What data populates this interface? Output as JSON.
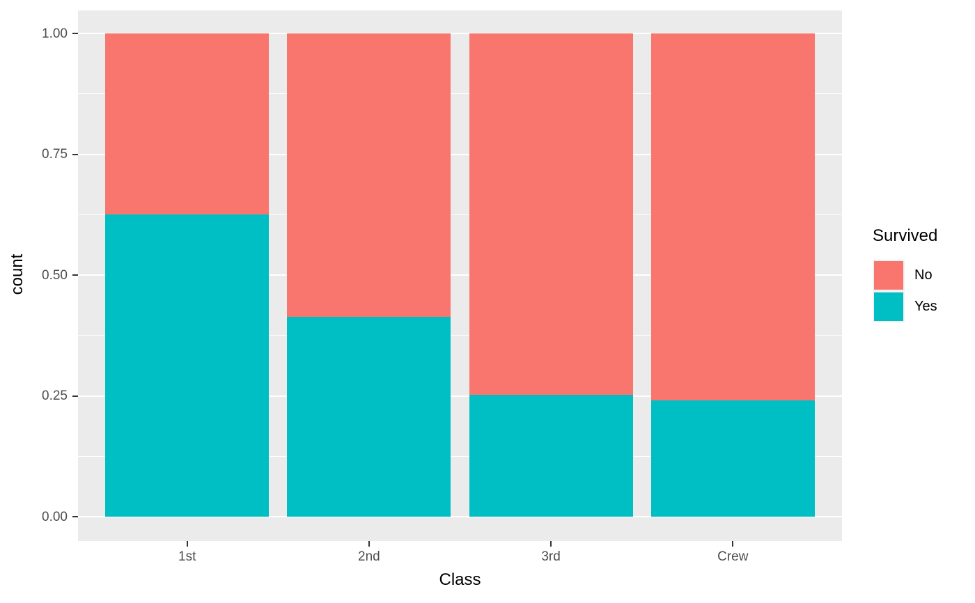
{
  "chart_data": {
    "type": "bar",
    "subtype": "stacked_fill_proportion",
    "title": "",
    "categories": [
      "1st",
      "2nd",
      "3rd",
      "Crew"
    ],
    "series": [
      {
        "name": "No",
        "color": "#F8766D",
        "values": [
          0.375,
          0.586,
          0.748,
          0.76
        ]
      },
      {
        "name": "Yes",
        "color": "#00BFC4",
        "values": [
          0.625,
          0.414,
          0.252,
          0.24
        ]
      }
    ],
    "xlabel": "Class",
    "ylabel": "count",
    "ylim": [
      0,
      1
    ],
    "yticks": [
      0,
      0.25,
      0.5,
      0.75,
      1
    ],
    "ytick_labels": [
      "0.00",
      "0.25",
      "0.50",
      "0.75",
      "1.00"
    ],
    "yticks_minor": [
      0.125,
      0.375,
      0.625,
      0.875
    ],
    "grid": true,
    "legend": {
      "title": "Survived",
      "position": "right",
      "entries": [
        {
          "label": "No",
          "color": "#F8766D"
        },
        {
          "label": "Yes",
          "color": "#00BFC4"
        }
      ]
    },
    "theme": {
      "background": "#FFFFFF",
      "panel_bg": "#EBEBEB",
      "grid_color": "#FFFFFF",
      "tick_label_color": "#4D4D4D",
      "axis_title_color": "#000000",
      "tick_mark_color": "#333333",
      "legend_key_bg": "#F2F2F2"
    }
  }
}
